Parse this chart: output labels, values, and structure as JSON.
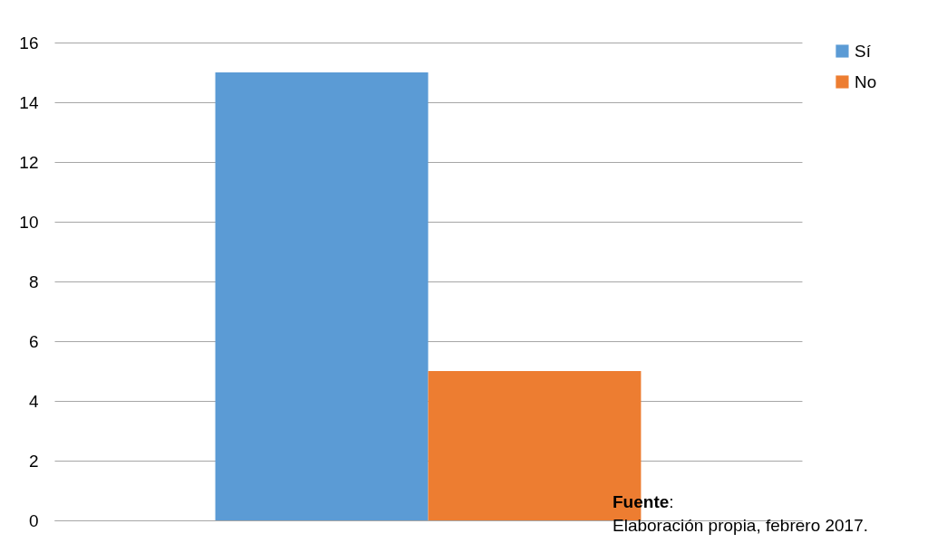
{
  "chart_data": {
    "type": "bar",
    "categories": [
      null
    ],
    "series": [
      {
        "name": "Sí",
        "color": "#5b9bd5",
        "values": [
          15
        ]
      },
      {
        "name": "No",
        "color": "#ed7d31",
        "values": [
          5
        ]
      }
    ],
    "ylim": [
      0,
      16
    ],
    "yticks": [
      0,
      2,
      4,
      6,
      8,
      10,
      12,
      14,
      16
    ],
    "grid": "y",
    "legend": "right",
    "annotations": [
      "Fuente: Elaboración propia, febrero 2017."
    ]
  }
}
